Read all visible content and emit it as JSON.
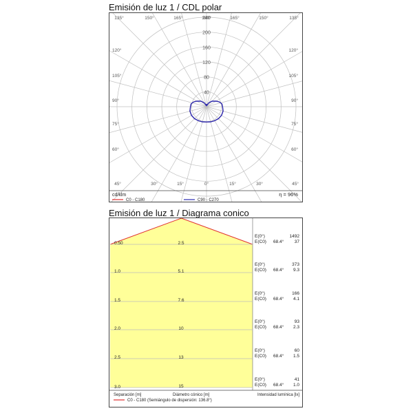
{
  "polar": {
    "title": "Emisión de luz 1 / CDL polar",
    "unit": "cd/klm",
    "efficiency": "η = 96%",
    "legend": [
      {
        "label": "C0 - C180",
        "color": "#e03030"
      },
      {
        "label": "C90 - C270",
        "color": "#2a2ab0"
      }
    ]
  },
  "cone": {
    "title": "Emisión de luz 1 / Diagrama conico",
    "footer": {
      "separation": "Separación [m]",
      "diameter": "Diámetro cónico [m]",
      "intensity": "Intensidad lumínica [lx]",
      "legend": "C0 - C180 (Semiángulo de dispersión: 136.8°)"
    },
    "fill_color": "#ffff99",
    "edge_color": "#e03030"
  },
  "chart_data": [
    {
      "type": "polar",
      "title": "Emisión de luz 1 / CDL polar",
      "unit": "cd/klm",
      "radial_ticks": [
        40,
        80,
        120,
        160,
        200,
        240
      ],
      "rmax": 240,
      "angle_labels": [
        "135°",
        "150°",
        "165°",
        "180°",
        "165°",
        "150°",
        "135°",
        "120°",
        "105°",
        "90°",
        "75°",
        "60°",
        "45°",
        "30°",
        "15°",
        "0°",
        "15°",
        "30°",
        "45°"
      ],
      "series": [
        {
          "name": "C0 - C180",
          "color": "#e03030",
          "angles": [
            0,
            15,
            30,
            45,
            60,
            75,
            90,
            100,
            110,
            120,
            135,
            150,
            165,
            175,
            180
          ],
          "values": [
            41,
            42,
            43.5,
            45.5,
            46.5,
            46,
            43,
            42,
            37,
            30,
            21,
            12,
            4,
            7,
            3
          ]
        },
        {
          "name": "C90 - C270",
          "color": "#2a2ab0",
          "angles": [
            0,
            15,
            30,
            45,
            60,
            75,
            90,
            100,
            110,
            120,
            135,
            150,
            165,
            175,
            180
          ],
          "values": [
            41,
            42,
            43.5,
            45.5,
            46.5,
            46,
            43,
            42,
            37,
            30,
            21,
            12,
            4,
            7,
            3
          ]
        }
      ],
      "efficiency": "η = 96%"
    },
    {
      "type": "table",
      "title": "Emisión de luz 1 / Diagrama conico",
      "half_angle_label": "68.4°",
      "rows": [
        {
          "separation": "0.50",
          "diameter": "2.5",
          "e0": "1492",
          "ec0": "37"
        },
        {
          "separation": "1.0",
          "diameter": "5.1",
          "e0": "373",
          "ec0": "9.3"
        },
        {
          "separation": "1.5",
          "diameter": "7.6",
          "e0": "166",
          "ec0": "4.1"
        },
        {
          "separation": "2.0",
          "diameter": "10",
          "e0": "93",
          "ec0": "2.3"
        },
        {
          "separation": "2.5",
          "diameter": "13",
          "e0": "60",
          "ec0": "1.5"
        },
        {
          "separation": "3.0",
          "diameter": "15",
          "e0": "41",
          "ec0": "1.0"
        }
      ],
      "labels": {
        "e0": "E(0°)",
        "ec0": "E(C0)"
      }
    }
  ]
}
